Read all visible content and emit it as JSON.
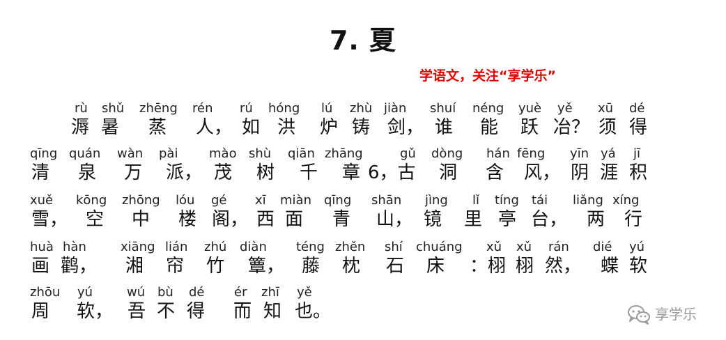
{
  "title": "7. 夏",
  "promo": "学语文，关注“享学乐”",
  "lines": [
    {
      "pinyin": [
        "rù",
        "shǔ",
        "zhēng",
        "rén",
        "rú",
        "hóng",
        "lú",
        "zhù",
        "jiàn",
        "shuí",
        "néng",
        "yuè",
        "yě",
        "xū",
        "dé"
      ],
      "hanzi": [
        "溽",
        "暑",
        "蒸",
        "人，",
        "如",
        "洪",
        "炉",
        "铸",
        "剑，",
        "谁",
        "能",
        "跃",
        "冶？",
        "须",
        "得"
      ]
    },
    {
      "pinyin": [
        "qīng",
        "quán",
        "wàn",
        "pài",
        "mào",
        "shù",
        "qiān",
        "zhāng",
        "gǔ",
        "dòng",
        "hán",
        "fēng",
        "yīn",
        "yá",
        "jī"
      ],
      "hanzi": [
        "清",
        "泉",
        "万",
        "派，",
        "茂",
        "树",
        "千",
        "章",
        "6，古",
        "洞",
        "含",
        "风，",
        "阴",
        "涯",
        "积"
      ]
    },
    {
      "pinyin": [
        "xuě",
        "kōng",
        "zhōng",
        "lóu",
        "gé",
        "xī",
        "miàn",
        "qīng",
        "shān",
        "jìng",
        "lǐ",
        "tíng",
        "tái",
        "liǎng",
        "xíng"
      ],
      "hanzi": [
        "雪，",
        "空",
        "中",
        "楼",
        "阁，",
        "西",
        "面",
        "青",
        "山，",
        "镜",
        "里",
        "亭",
        "台，",
        "两",
        "行"
      ]
    },
    {
      "pinyin": [
        "huà",
        "hàn",
        "xiāng",
        "lián",
        "zhú",
        "diàn",
        "téng",
        "zhěn",
        "shí",
        "chuáng",
        "xǔ",
        "xǔ",
        "rán",
        "dié",
        "yú"
      ],
      "hanzi": [
        "画",
        "鹳，",
        "湘",
        "帘",
        "竹",
        "簟，",
        "藤",
        "枕",
        "石",
        "床",
        "：栩",
        "栩",
        "然，",
        "蝶",
        "软"
      ]
    },
    {
      "pinyin": [
        "zhōu",
        "yú",
        "wú",
        "bù",
        "dé",
        "ér",
        "zhī",
        "yě"
      ],
      "hanzi": [
        "周",
        "软，",
        "吾",
        "不",
        "得",
        "而",
        "知",
        "也。"
      ]
    }
  ],
  "watermark": {
    "icon": "wechat-icon",
    "text": "享学乐"
  }
}
